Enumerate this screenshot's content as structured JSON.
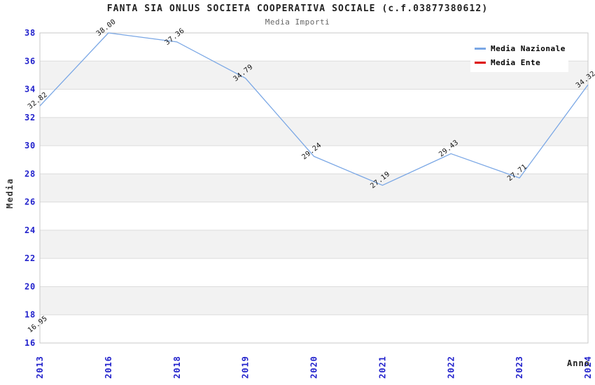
{
  "header": {
    "title": "FANTA SIA ONLUS SOCIETA COOPERATIVA SOCIALE (c.f.03877380612)",
    "subtitle": "Media Importi"
  },
  "colors": {
    "tick_text": "#2222CC",
    "band_fill": "#F2F2F2",
    "gridline": "#DCDCDC",
    "plot_border": "#C9C9C9",
    "data_label": "#111111",
    "nazionale_line": "#7AA7E5",
    "ente_line": "#DD0000"
  },
  "chart_data": {
    "type": "line",
    "title": "FANTA SIA ONLUS SOCIETA COOPERATIVA SOCIALE (c.f.03877380612)",
    "subtitle": "Media Importi",
    "xlabel": "Anno",
    "ylabel": "Media",
    "categories": [
      "2013",
      "2016",
      "2018",
      "2019",
      "2020",
      "2021",
      "2022",
      "2023",
      "2024"
    ],
    "series": [
      {
        "name": "Media Nazionale",
        "color": "#7AA7E5",
        "values": [
          32.82,
          38.0,
          37.36,
          34.79,
          29.24,
          27.19,
          29.43,
          27.71,
          34.32
        ]
      },
      {
        "name": "Media Ente",
        "color": "#DD0000",
        "values": [
          16.95,
          null,
          null,
          null,
          null,
          null,
          null,
          null,
          null
        ]
      }
    ],
    "ylim": [
      16,
      38
    ],
    "ytick_step": 2,
    "grid": "horizontal-bands-alternating",
    "legend_position": "top-right",
    "data_label_format": "2-decimals-rotated"
  }
}
